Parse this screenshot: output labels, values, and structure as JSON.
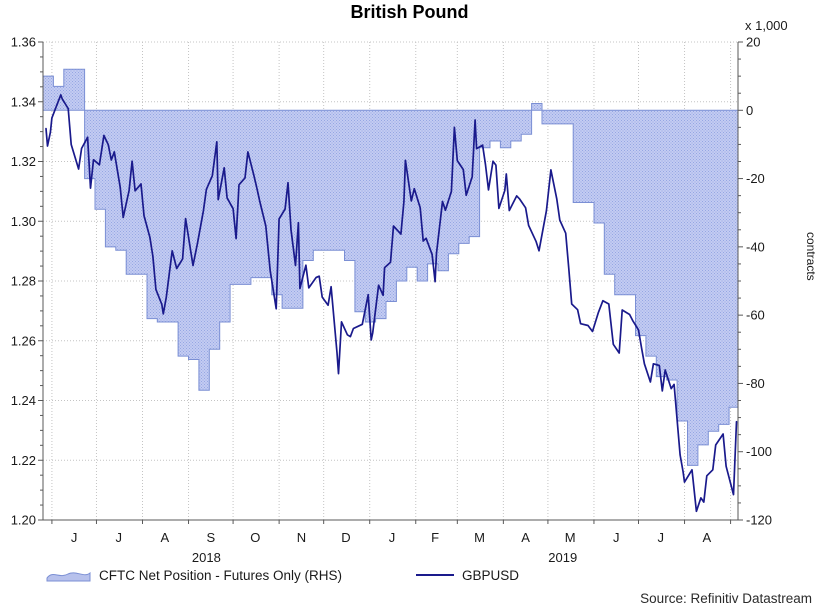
{
  "title": "British Pound",
  "source": "Source: Refinitiv Datastream",
  "left_axis": {
    "ticks": [
      {
        "v": 1.36,
        "label": "1.36"
      },
      {
        "v": 1.34,
        "label": "1.34"
      },
      {
        "v": 1.32,
        "label": "1.32"
      },
      {
        "v": 1.3,
        "label": "1.30"
      },
      {
        "v": 1.28,
        "label": "1.28"
      },
      {
        "v": 1.26,
        "label": "1.26"
      },
      {
        "v": 1.24,
        "label": "1.24"
      },
      {
        "v": 1.22,
        "label": "1.22"
      },
      {
        "v": 1.2,
        "label": "1.20"
      }
    ],
    "min": 1.2,
    "max": 1.36,
    "minor_step": 0.005
  },
  "right_axis": {
    "unit": "x 1,000",
    "label": "contracts",
    "ticks": [
      {
        "v": 20,
        "label": "20"
      },
      {
        "v": 0,
        "label": "0"
      },
      {
        "v": -20,
        "label": "-20"
      },
      {
        "v": -40,
        "label": "-40"
      },
      {
        "v": -60,
        "label": "-60"
      },
      {
        "v": -80,
        "label": "-80"
      },
      {
        "v": -100,
        "label": "-100"
      },
      {
        "v": -120,
        "label": "-120"
      }
    ],
    "min": -120,
    "max": 20,
    "minor_step": 5
  },
  "x_axis": {
    "start": "2018-05-26",
    "end": "2019-09-06",
    "month_boundaries": [
      "2018-06-01",
      "2018-07-01",
      "2018-08-01",
      "2018-09-01",
      "2018-10-01",
      "2018-11-01",
      "2018-12-01",
      "2019-01-01",
      "2019-02-01",
      "2019-03-01",
      "2019-04-01",
      "2019-05-01",
      "2019-06-01",
      "2019-07-01",
      "2019-08-01",
      "2019-09-01"
    ],
    "months": [
      {
        "label": "J",
        "mid": "2018-06-16"
      },
      {
        "label": "J",
        "mid": "2018-07-16"
      },
      {
        "label": "A",
        "mid": "2018-08-16"
      },
      {
        "label": "S",
        "mid": "2018-09-16"
      },
      {
        "label": "O",
        "mid": "2018-10-16"
      },
      {
        "label": "N",
        "mid": "2018-11-16"
      },
      {
        "label": "D",
        "mid": "2018-12-16"
      },
      {
        "label": "J",
        "mid": "2019-01-16"
      },
      {
        "label": "F",
        "mid": "2019-02-14"
      },
      {
        "label": "M",
        "mid": "2019-03-16"
      },
      {
        "label": "A",
        "mid": "2019-04-16"
      },
      {
        "label": "M",
        "mid": "2019-05-16"
      },
      {
        "label": "J",
        "mid": "2019-06-16"
      },
      {
        "label": "J",
        "mid": "2019-07-16"
      },
      {
        "label": "A",
        "mid": "2019-08-16"
      }
    ],
    "years": [
      {
        "label": "2018",
        "at": "2018-09-13"
      },
      {
        "label": "2019",
        "at": "2019-05-11"
      }
    ]
  },
  "legend": [
    {
      "label": "CFTC Net Position - Futures Only (RHS)",
      "swatch": "step-area"
    },
    {
      "label": "GBPUSD",
      "swatch": "line"
    }
  ],
  "colors": {
    "area_fill_light": "#c3ccf2",
    "area_fill_dot": "#96a6e3",
    "area_edge": "#7b8fd4",
    "line": "#1a1a8c",
    "gridline": "#c4c4c4",
    "spine": "#595959",
    "text": "#1a1a1a"
  },
  "chart_data": {
    "type": "combo",
    "title": "British Pound",
    "x_range": [
      "2018-05-26",
      "2019-09-06"
    ],
    "left_ylim": [
      1.2,
      1.36
    ],
    "right_ylim": [
      -120,
      20
    ],
    "right_unit": "thousand contracts",
    "grid": "dotted, monthly vertical + 0.02 horizontal",
    "legend_position": "bottom",
    "series": [
      {
        "name": "CFTC Net Position - Futures Only (RHS)",
        "type": "step-area",
        "axis": "right",
        "unit": "x 1,000 contracts",
        "start": "2018-05-26",
        "interval_days": 7,
        "values": [
          10,
          7,
          12,
          12,
          -20,
          -29,
          -40,
          -41,
          -48,
          -48,
          -61,
          -62,
          -62,
          -72,
          -73,
          -82,
          -70,
          -62,
          -51,
          -51,
          -49,
          -49,
          -54,
          -58,
          -58,
          -44,
          -41,
          -41,
          -41,
          -44,
          -59,
          -62,
          -61,
          -56,
          -50,
          -46,
          -50,
          -45,
          -47,
          -42,
          -39,
          -37,
          -11,
          -9,
          -11,
          -9,
          -7,
          2,
          -4,
          -4,
          -4,
          -27,
          -27,
          -33,
          -48,
          -54,
          -54,
          -66,
          -72,
          -78,
          -79,
          -91,
          -104,
          -98,
          -94,
          -92,
          -87
        ]
      },
      {
        "name": "GBPUSD",
        "type": "line",
        "axis": "left",
        "points": [
          [
            "2018-05-28",
            1.331
          ],
          [
            "2018-05-29",
            1.3252
          ],
          [
            "2018-05-31",
            1.3298
          ],
          [
            "2018-06-01",
            1.3346
          ],
          [
            "2018-06-05",
            1.3398
          ],
          [
            "2018-06-07",
            1.3423
          ],
          [
            "2018-06-08",
            1.3409
          ],
          [
            "2018-06-12",
            1.3377
          ],
          [
            "2018-06-14",
            1.3257
          ],
          [
            "2018-06-19",
            1.3175
          ],
          [
            "2018-06-21",
            1.3244
          ],
          [
            "2018-06-25",
            1.3281
          ],
          [
            "2018-06-27",
            1.3111
          ],
          [
            "2018-06-29",
            1.3206
          ],
          [
            "2018-07-03",
            1.3189
          ],
          [
            "2018-07-06",
            1.3287
          ],
          [
            "2018-07-09",
            1.3256
          ],
          [
            "2018-07-11",
            1.3205
          ],
          [
            "2018-07-13",
            1.3232
          ],
          [
            "2018-07-17",
            1.3114
          ],
          [
            "2018-07-19",
            1.3013
          ],
          [
            "2018-07-23",
            1.3103
          ],
          [
            "2018-07-25",
            1.3201
          ],
          [
            "2018-07-27",
            1.3102
          ],
          [
            "2018-07-31",
            1.3125
          ],
          [
            "2018-08-02",
            1.3019
          ],
          [
            "2018-08-06",
            1.2946
          ],
          [
            "2018-08-08",
            1.2882
          ],
          [
            "2018-08-10",
            1.2772
          ],
          [
            "2018-08-14",
            1.2722
          ],
          [
            "2018-08-15",
            1.269
          ],
          [
            "2018-08-17",
            1.2746
          ],
          [
            "2018-08-21",
            1.2901
          ],
          [
            "2018-08-24",
            1.2842
          ],
          [
            "2018-08-28",
            1.2874
          ],
          [
            "2018-08-30",
            1.3009
          ],
          [
            "2018-09-04",
            1.2852
          ],
          [
            "2018-09-07",
            1.2925
          ],
          [
            "2018-09-11",
            1.3035
          ],
          [
            "2018-09-13",
            1.3107
          ],
          [
            "2018-09-17",
            1.3152
          ],
          [
            "2018-09-20",
            1.3266
          ],
          [
            "2018-09-21",
            1.3072
          ],
          [
            "2018-09-25",
            1.3179
          ],
          [
            "2018-09-27",
            1.3078
          ],
          [
            "2018-10-01",
            1.3042
          ],
          [
            "2018-10-03",
            1.2942
          ],
          [
            "2018-10-05",
            1.3122
          ],
          [
            "2018-10-09",
            1.3145
          ],
          [
            "2018-10-11",
            1.3232
          ],
          [
            "2018-10-15",
            1.3153
          ],
          [
            "2018-10-17",
            1.3112
          ],
          [
            "2018-10-19",
            1.3066
          ],
          [
            "2018-10-23",
            1.2984
          ],
          [
            "2018-10-26",
            1.2834
          ],
          [
            "2018-10-30",
            1.2707
          ],
          [
            "2018-11-01",
            1.3008
          ],
          [
            "2018-11-05",
            1.3041
          ],
          [
            "2018-11-07",
            1.3129
          ],
          [
            "2018-11-09",
            1.2972
          ],
          [
            "2018-11-12",
            1.2852
          ],
          [
            "2018-11-14",
            1.2995
          ],
          [
            "2018-11-15",
            1.2775
          ],
          [
            "2018-11-19",
            1.2853
          ],
          [
            "2018-11-21",
            1.2777
          ],
          [
            "2018-11-26",
            1.2812
          ],
          [
            "2018-11-28",
            1.2816
          ],
          [
            "2018-11-30",
            1.2746
          ],
          [
            "2018-12-04",
            1.2719
          ],
          [
            "2018-12-06",
            1.2781
          ],
          [
            "2018-12-10",
            1.256
          ],
          [
            "2018-12-11",
            1.249
          ],
          [
            "2018-12-13",
            1.2663
          ],
          [
            "2018-12-17",
            1.262
          ],
          [
            "2018-12-19",
            1.2614
          ],
          [
            "2018-12-21",
            1.2641
          ],
          [
            "2018-12-27",
            1.2655
          ],
          [
            "2018-12-31",
            1.2754
          ],
          [
            "2019-01-02",
            1.2603
          ],
          [
            "2019-01-03",
            1.2626
          ],
          [
            "2019-01-07",
            1.2786
          ],
          [
            "2019-01-10",
            1.2752
          ],
          [
            "2019-01-11",
            1.2845
          ],
          [
            "2019-01-15",
            1.2863
          ],
          [
            "2019-01-17",
            1.2984
          ],
          [
            "2019-01-22",
            1.2957
          ],
          [
            "2019-01-24",
            1.3065
          ],
          [
            "2019-01-25",
            1.3204
          ],
          [
            "2019-01-29",
            1.3068
          ],
          [
            "2019-01-31",
            1.3109
          ],
          [
            "2019-02-04",
            1.3045
          ],
          [
            "2019-02-06",
            1.2934
          ],
          [
            "2019-02-08",
            1.2943
          ],
          [
            "2019-02-12",
            1.2889
          ],
          [
            "2019-02-14",
            1.2798
          ],
          [
            "2019-02-15",
            1.2893
          ],
          [
            "2019-02-19",
            1.3066
          ],
          [
            "2019-02-21",
            1.3037
          ],
          [
            "2019-02-25",
            1.31
          ],
          [
            "2019-02-27",
            1.3314
          ],
          [
            "2019-03-01",
            1.3203
          ],
          [
            "2019-03-05",
            1.3173
          ],
          [
            "2019-03-07",
            1.3087
          ],
          [
            "2019-03-11",
            1.3149
          ],
          [
            "2019-03-13",
            1.3339
          ],
          [
            "2019-03-14",
            1.3243
          ],
          [
            "2019-03-18",
            1.3255
          ],
          [
            "2019-03-20",
            1.3189
          ],
          [
            "2019-03-22",
            1.3105
          ],
          [
            "2019-03-25",
            1.3201
          ],
          [
            "2019-03-27",
            1.3188
          ],
          [
            "2019-03-29",
            1.3043
          ],
          [
            "2019-04-02",
            1.3103
          ],
          [
            "2019-04-03",
            1.3158
          ],
          [
            "2019-04-05",
            1.3036
          ],
          [
            "2019-04-10",
            1.3085
          ],
          [
            "2019-04-12",
            1.3074
          ],
          [
            "2019-04-16",
            1.3045
          ],
          [
            "2019-04-18",
            1.2986
          ],
          [
            "2019-04-23",
            1.2933
          ],
          [
            "2019-04-25",
            1.2901
          ],
          [
            "2019-04-30",
            1.3035
          ],
          [
            "2019-05-03",
            1.3172
          ],
          [
            "2019-05-07",
            1.3074
          ],
          [
            "2019-05-09",
            1.3004
          ],
          [
            "2019-05-13",
            1.296
          ],
          [
            "2019-05-15",
            1.2845
          ],
          [
            "2019-05-17",
            1.2723
          ],
          [
            "2019-05-21",
            1.2704
          ],
          [
            "2019-05-23",
            1.2657
          ],
          [
            "2019-05-28",
            1.2651
          ],
          [
            "2019-05-31",
            1.2631
          ],
          [
            "2019-06-04",
            1.2695
          ],
          [
            "2019-06-07",
            1.2734
          ],
          [
            "2019-06-11",
            1.2723
          ],
          [
            "2019-06-14",
            1.2588
          ],
          [
            "2019-06-18",
            1.2559
          ],
          [
            "2019-06-20",
            1.2703
          ],
          [
            "2019-06-25",
            1.2688
          ],
          [
            "2019-06-27",
            1.2668
          ],
          [
            "2019-07-01",
            1.2636
          ],
          [
            "2019-07-03",
            1.2577
          ],
          [
            "2019-07-05",
            1.2523
          ],
          [
            "2019-07-09",
            1.2462
          ],
          [
            "2019-07-11",
            1.2523
          ],
          [
            "2019-07-15",
            1.2517
          ],
          [
            "2019-07-17",
            1.2432
          ],
          [
            "2019-07-19",
            1.2502
          ],
          [
            "2019-07-23",
            1.244
          ],
          [
            "2019-07-25",
            1.2454
          ],
          [
            "2019-07-29",
            1.2218
          ],
          [
            "2019-07-31",
            1.2161
          ],
          [
            "2019-08-01",
            1.2127
          ],
          [
            "2019-08-06",
            1.2168
          ],
          [
            "2019-08-09",
            1.2029
          ],
          [
            "2019-08-12",
            1.2074
          ],
          [
            "2019-08-14",
            1.206
          ],
          [
            "2019-08-16",
            1.2148
          ],
          [
            "2019-08-20",
            1.2168
          ],
          [
            "2019-08-22",
            1.2251
          ],
          [
            "2019-08-27",
            1.2288
          ],
          [
            "2019-08-29",
            1.218
          ],
          [
            "2019-09-03",
            1.2085
          ],
          [
            "2019-09-05",
            1.2329
          ]
        ]
      }
    ]
  }
}
